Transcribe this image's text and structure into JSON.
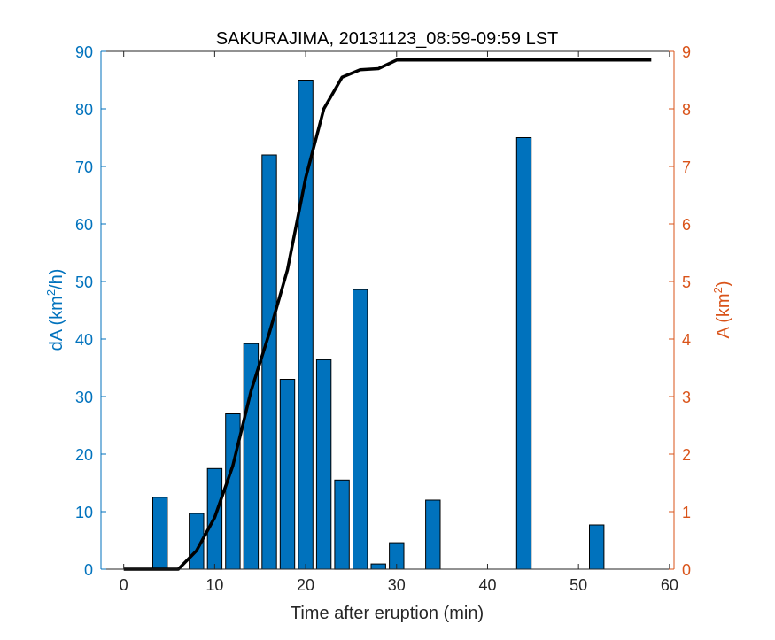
{
  "chart_data": {
    "type": "bar",
    "title": "SAKURAJIMA, 20131123_08:59-09:59 LST",
    "xlabel": "Time after eruption (min)",
    "ylabel_left": {
      "base": "dA (km",
      "sup": "2",
      "tail": "/h)"
    },
    "ylabel_right": {
      "base": "A (km",
      "sup": "2",
      "tail": ")"
    },
    "xlim": [
      -2.5,
      60.5
    ],
    "ylim_left": [
      0,
      90
    ],
    "ylim_right": [
      0,
      9
    ],
    "xticks": [
      "0",
      "10",
      "20",
      "30",
      "40",
      "50",
      "60"
    ],
    "yticks_left": [
      "0",
      "10",
      "20",
      "30",
      "40",
      "50",
      "60",
      "70",
      "80",
      "90"
    ],
    "yticks_right": [
      "0",
      "1",
      "2",
      "3",
      "4",
      "5",
      "6",
      "7",
      "8",
      "9"
    ],
    "colors": {
      "bars": "#0072BD",
      "line": "#000000",
      "left_axis": "#0072BD",
      "right_axis": "#D95319"
    },
    "series": [
      {
        "type": "bar",
        "axis": "left",
        "x": [
          4,
          8,
          10,
          12,
          14,
          16,
          18,
          20,
          22,
          24,
          26,
          28,
          30,
          34,
          44,
          52
        ],
        "values": [
          12.5,
          9.7,
          17.5,
          27,
          39.2,
          72,
          33,
          85,
          36.4,
          15.5,
          48.6,
          0.9,
          4.6,
          12,
          75,
          7.7
        ]
      },
      {
        "type": "line",
        "axis": "right",
        "x": [
          0,
          6,
          8,
          10,
          12,
          14,
          16,
          18,
          20,
          22,
          24,
          26,
          28,
          30,
          58
        ],
        "values": [
          0,
          0,
          0.32,
          0.9,
          1.8,
          3.1,
          4.1,
          5.2,
          6.8,
          8.0,
          8.55,
          8.68,
          8.7,
          8.85,
          8.85
        ]
      }
    ]
  }
}
